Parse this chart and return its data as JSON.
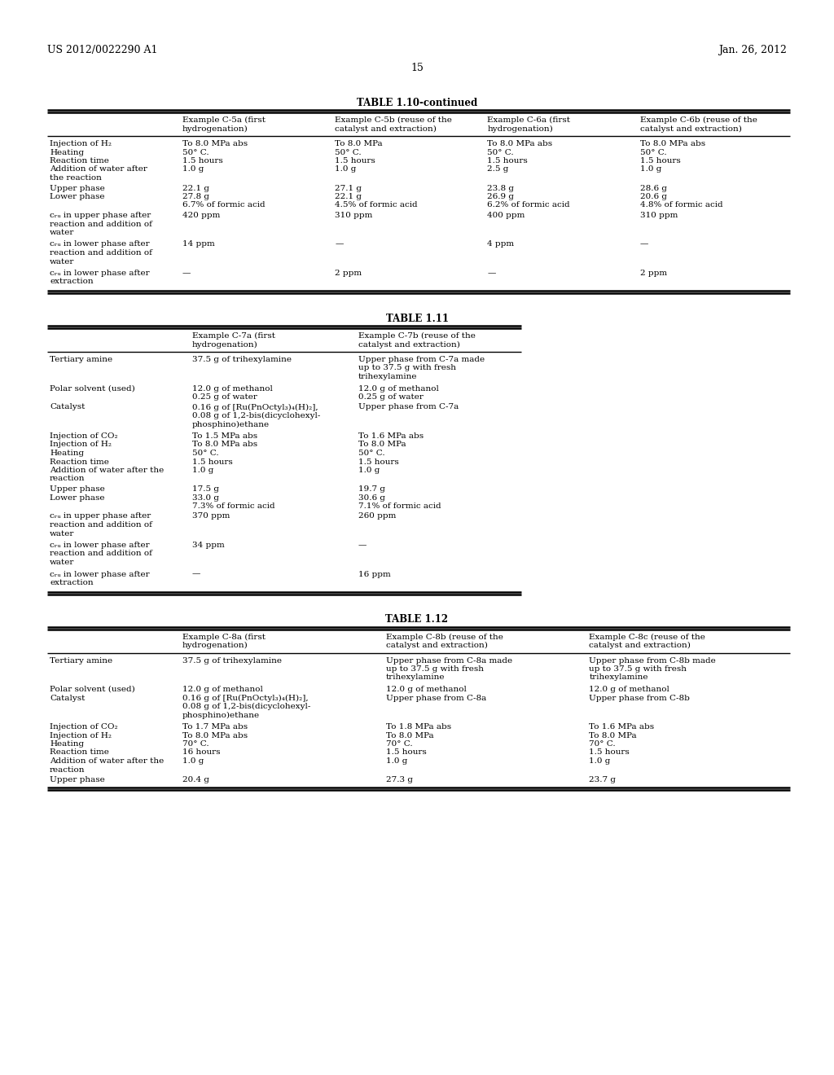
{
  "bg_color": "#ffffff",
  "header_left": "US 2012/0022290 A1",
  "header_right": "Jan. 26, 2012",
  "page_number": "15",
  "font_size": 7.5,
  "font_family": "DejaVu Serif",
  "table1_title": "TABLE 1.10-continued",
  "table1_cols": [
    "",
    "Example C-5a (first\nhydrogenation)",
    "Example C-5b (reuse of the\ncatalyst and extraction)",
    "Example C-6a (first\nhydrogenation)",
    "Example C-6b (reuse of the\ncatalyst and extraction)"
  ],
  "table1_rows": [
    [
      "Injection of H₂",
      "To 8.0 MPa abs",
      "To 8.0 MPa",
      "To 8.0 MPa abs",
      "To 8.0 MPa abs"
    ],
    [
      "Heating",
      "50° C.",
      "50° C.",
      "50° C.",
      "50° C."
    ],
    [
      "Reaction time",
      "1.5 hours",
      "1.5 hours",
      "1.5 hours",
      "1.5 hours"
    ],
    [
      "Addition of water after\nthe reaction",
      "1.0 g",
      "1.0 g",
      "2.5 g",
      "1.0 g"
    ],
    [
      "Upper phase",
      "22.1 g",
      "27.1 g",
      "23.8 g",
      "28.6 g"
    ],
    [
      "Lower phase",
      "27.8 g\n6.7% of formic acid",
      "22.1 g\n4.5% of formic acid",
      "26.9 g\n6.2% of formic acid",
      "20.6 g\n4.8% of formic acid"
    ],
    [
      "cᵣᵤ in upper phase after\nreaction and addition of\nwater",
      "420 ppm",
      "310 ppm",
      "400 ppm",
      "310 ppm"
    ],
    [
      "cᵣᵤ in lower phase after\nreaction and addition of\nwater",
      "14 ppm",
      "—",
      "4 ppm",
      "—"
    ],
    [
      "cᵣᵤ in lower phase after\nextraction",
      "—",
      "2 ppm",
      "—",
      "2 ppm"
    ]
  ],
  "table2_title": "TABLE 1.11",
  "table2_cols": [
    "",
    "Example C-7a (first\nhydrogenation)",
    "Example C-7b (reuse of the\ncatalyst and extraction)"
  ],
  "table2_rows": [
    [
      "Tertiary amine",
      "37.5 g of trihexylamine",
      "Upper phase from C-7a made\nup to 37.5 g with fresh\ntrihexylamine"
    ],
    [
      "Polar solvent (used)",
      "12.0 g of methanol\n0.25 g of water",
      "12.0 g of methanol\n0.25 g of water"
    ],
    [
      "Catalyst",
      "0.16 g of [Ru(PnOctyl₃)₄(H)₂],\n0.08 g of 1,2-bis(dicyclohexyl-\nphosphino)ethane",
      "Upper phase from C-7a"
    ],
    [
      "Injection of CO₂",
      "To 1.5 MPa abs",
      "To 1.6 MPa abs"
    ],
    [
      "Injection of H₂",
      "To 8.0 MPa abs",
      "To 8.0 MPa"
    ],
    [
      "Heating",
      "50° C.",
      "50° C."
    ],
    [
      "Reaction time",
      "1.5 hours",
      "1.5 hours"
    ],
    [
      "Addition of water after the\nreaction",
      "1.0 g",
      "1.0 g"
    ],
    [
      "Upper phase",
      "17.5 g",
      "19.7 g"
    ],
    [
      "Lower phase",
      "33.0 g\n7.3% of formic acid",
      "30.6 g\n7.1% of formic acid"
    ],
    [
      "cᵣᵤ in upper phase after\nreaction and addition of\nwater",
      "370 ppm",
      "260 ppm"
    ],
    [
      "cᵣᵤ in lower phase after\nreaction and addition of\nwater",
      "34 ppm",
      "—"
    ],
    [
      "cᵣᵤ in lower phase after\nextraction",
      "—",
      "16 ppm"
    ]
  ],
  "table3_title": "TABLE 1.12",
  "table3_cols": [
    "",
    "Example C-8a (first\nhydrogenation)",
    "Example C-8b (reuse of the\ncatalyst and extraction)",
    "Example C-8c (reuse of the\ncatalyst and extraction)"
  ],
  "table3_rows": [
    [
      "Tertiary amine",
      "37.5 g of trihexylamine",
      "Upper phase from C-8a made\nup to 37.5 g with fresh\ntrihexylamine",
      "Upper phase from C-8b made\nup to 37.5 g with fresh\ntrihexylamine"
    ],
    [
      "Polar solvent (used)",
      "12.0 g of methanol",
      "12.0 g of methanol",
      "12.0 g of methanol"
    ],
    [
      "Catalyst",
      "0.16 g of [Ru(PnOctyl₃)₄(H)₂],\n0.08 g of 1,2-bis(dicyclohexyl-\nphosphino)ethane",
      "Upper phase from C-8a",
      "Upper phase from C-8b"
    ],
    [
      "Injection of CO₂",
      "To 1.7 MPa abs",
      "To 1.8 MPa abs",
      "To 1.6 MPa abs"
    ],
    [
      "Injection of H₂",
      "To 8.0 MPa abs",
      "To 8.0 MPa",
      "To 8.0 MPa"
    ],
    [
      "Heating",
      "70° C.",
      "70° C.",
      "70° C."
    ],
    [
      "Reaction time",
      "16 hours",
      "1.5 hours",
      "1.5 hours"
    ],
    [
      "Addition of water after the\nreaction",
      "1.0 g",
      "1.0 g",
      "1.0 g"
    ],
    [
      "Upper phase",
      "20.4 g",
      "27.3 g",
      "23.7 g"
    ]
  ]
}
